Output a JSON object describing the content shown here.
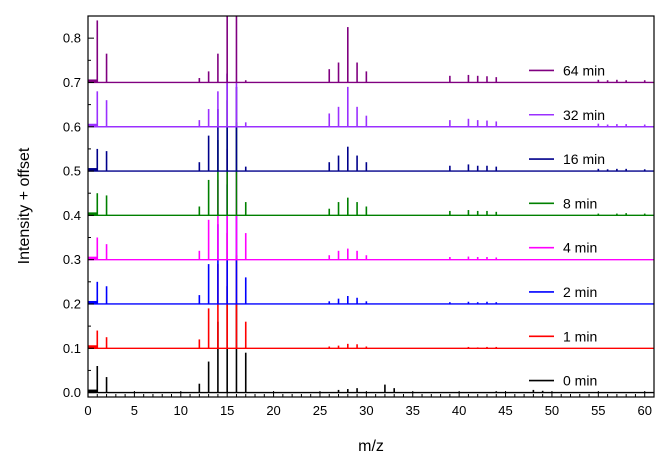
{
  "chart_data": {
    "type": "line",
    "title": "",
    "xlabel": "m/z",
    "ylabel": "Intensity + offset",
    "xlim": [
      0,
      61
    ],
    "ylim": [
      -0.01,
      0.85
    ],
    "x_major_ticks": [
      0,
      5,
      10,
      15,
      20,
      25,
      30,
      35,
      40,
      45,
      50,
      55,
      60
    ],
    "y_major_ticks": [
      0.0,
      0.1,
      0.2,
      0.3,
      0.4,
      0.5,
      0.6,
      0.7,
      0.8
    ],
    "x_tick_labels": [
      "0",
      "5",
      "10",
      "15",
      "20",
      "25",
      "30",
      "35",
      "40",
      "45",
      "50",
      "55",
      "60"
    ],
    "y_tick_labels": [
      "0.0",
      "0.1",
      "0.2",
      "0.3",
      "0.4",
      "0.5",
      "0.6",
      "0.7",
      "0.8"
    ],
    "offset_step": 0.1,
    "grid": false,
    "legend_placement": "right",
    "series": [
      {
        "name": "0 min",
        "color": "#000000",
        "offset": 0.0,
        "peaks": [
          [
            1,
            0.06
          ],
          [
            2,
            0.035
          ],
          [
            12,
            0.02
          ],
          [
            13,
            0.07
          ],
          [
            14,
            0.16
          ],
          [
            15,
            0.24
          ],
          [
            16,
            0.2
          ],
          [
            17,
            0.09
          ],
          [
            27,
            0.006
          ],
          [
            28,
            0.008
          ],
          [
            29,
            0.01
          ],
          [
            32,
            0.018
          ],
          [
            33,
            0.01
          ],
          [
            44,
            0.003
          ],
          [
            48,
            0.006
          ],
          [
            49,
            0.004
          ]
        ]
      },
      {
        "name": "1 min",
        "color": "#ff0000",
        "offset": 0.1,
        "peaks": [
          [
            1,
            0.04
          ],
          [
            2,
            0.025
          ],
          [
            12,
            0.02
          ],
          [
            13,
            0.09
          ],
          [
            14,
            0.19
          ],
          [
            15,
            0.26
          ],
          [
            16,
            0.21
          ],
          [
            17,
            0.06
          ],
          [
            26,
            0.004
          ],
          [
            27,
            0.006
          ],
          [
            28,
            0.01
          ],
          [
            29,
            0.009
          ],
          [
            30,
            0.004
          ],
          [
            41,
            0.003
          ],
          [
            42,
            0.002
          ],
          [
            43,
            0.003
          ],
          [
            44,
            0.003
          ]
        ]
      },
      {
        "name": "2 min",
        "color": "#0000ff",
        "offset": 0.2,
        "peaks": [
          [
            1,
            0.05
          ],
          [
            2,
            0.04
          ],
          [
            12,
            0.02
          ],
          [
            13,
            0.09
          ],
          [
            14,
            0.18
          ],
          [
            15,
            0.27
          ],
          [
            16,
            0.2
          ],
          [
            17,
            0.06
          ],
          [
            26,
            0.006
          ],
          [
            27,
            0.012
          ],
          [
            28,
            0.018
          ],
          [
            29,
            0.014
          ],
          [
            30,
            0.006
          ],
          [
            39,
            0.004
          ],
          [
            41,
            0.005
          ],
          [
            42,
            0.004
          ],
          [
            43,
            0.005
          ],
          [
            44,
            0.004
          ]
        ]
      },
      {
        "name": "4 min",
        "color": "#ff00ff",
        "offset": 0.3,
        "peaks": [
          [
            1,
            0.05
          ],
          [
            2,
            0.035
          ],
          [
            12,
            0.02
          ],
          [
            13,
            0.09
          ],
          [
            14,
            0.18
          ],
          [
            15,
            0.25
          ],
          [
            16,
            0.2
          ],
          [
            17,
            0.06
          ],
          [
            26,
            0.01
          ],
          [
            27,
            0.02
          ],
          [
            28,
            0.025
          ],
          [
            29,
            0.02
          ],
          [
            30,
            0.01
          ],
          [
            39,
            0.006
          ],
          [
            41,
            0.007
          ],
          [
            42,
            0.006
          ],
          [
            43,
            0.006
          ],
          [
            44,
            0.005
          ]
        ]
      },
      {
        "name": "8 min",
        "color": "#008000",
        "offset": 0.4,
        "peaks": [
          [
            1,
            0.05
          ],
          [
            2,
            0.045
          ],
          [
            12,
            0.02
          ],
          [
            13,
            0.08
          ],
          [
            14,
            0.17
          ],
          [
            15,
            0.26
          ],
          [
            16,
            0.21
          ],
          [
            17,
            0.03
          ],
          [
            26,
            0.015
          ],
          [
            27,
            0.03
          ],
          [
            28,
            0.04
          ],
          [
            29,
            0.03
          ],
          [
            30,
            0.02
          ],
          [
            39,
            0.01
          ],
          [
            41,
            0.012
          ],
          [
            42,
            0.01
          ],
          [
            43,
            0.01
          ],
          [
            44,
            0.008
          ],
          [
            55,
            0.004
          ],
          [
            57,
            0.004
          ],
          [
            58,
            0.005
          ],
          [
            60,
            0.004
          ]
        ]
      },
      {
        "name": "16 min",
        "color": "#00008b",
        "offset": 0.5,
        "peaks": [
          [
            1,
            0.05
          ],
          [
            2,
            0.045
          ],
          [
            12,
            0.02
          ],
          [
            13,
            0.08
          ],
          [
            14,
            0.14
          ],
          [
            15,
            0.22
          ],
          [
            16,
            0.19
          ],
          [
            17,
            0.01
          ],
          [
            26,
            0.02
          ],
          [
            27,
            0.035
          ],
          [
            28,
            0.055
          ],
          [
            29,
            0.035
          ],
          [
            30,
            0.02
          ],
          [
            39,
            0.012
          ],
          [
            41,
            0.015
          ],
          [
            42,
            0.012
          ],
          [
            43,
            0.012
          ],
          [
            44,
            0.01
          ],
          [
            55,
            0.005
          ],
          [
            56,
            0.004
          ],
          [
            57,
            0.005
          ],
          [
            58,
            0.005
          ],
          [
            60,
            0.004
          ]
        ]
      },
      {
        "name": "32 min",
        "color": "#9b30ff",
        "offset": 0.6,
        "peaks": [
          [
            1,
            0.08
          ],
          [
            2,
            0.06
          ],
          [
            12,
            0.015
          ],
          [
            13,
            0.04
          ],
          [
            14,
            0.08
          ],
          [
            15,
            0.12
          ],
          [
            16,
            0.1
          ],
          [
            17,
            0.01
          ],
          [
            26,
            0.03
          ],
          [
            27,
            0.045
          ],
          [
            28,
            0.09
          ],
          [
            29,
            0.045
          ],
          [
            30,
            0.025
          ],
          [
            39,
            0.015
          ],
          [
            41,
            0.018
          ],
          [
            42,
            0.015
          ],
          [
            43,
            0.014
          ],
          [
            44,
            0.012
          ],
          [
            55,
            0.007
          ],
          [
            56,
            0.005
          ],
          [
            57,
            0.006
          ],
          [
            58,
            0.006
          ],
          [
            60,
            0.005
          ]
        ]
      },
      {
        "name": "64 min",
        "color": "#800080",
        "offset": 0.7,
        "peaks": [
          [
            1,
            0.14
          ],
          [
            2,
            0.065
          ],
          [
            12,
            0.01
          ],
          [
            13,
            0.025
          ],
          [
            14,
            0.065
          ],
          [
            15,
            0.15
          ],
          [
            16,
            0.15
          ],
          [
            17,
            0.005
          ],
          [
            26,
            0.03
          ],
          [
            27,
            0.045
          ],
          [
            28,
            0.125
          ],
          [
            29,
            0.045
          ],
          [
            30,
            0.025
          ],
          [
            39,
            0.015
          ],
          [
            41,
            0.017
          ],
          [
            42,
            0.015
          ],
          [
            43,
            0.014
          ],
          [
            44,
            0.012
          ],
          [
            55,
            0.006
          ],
          [
            56,
            0.005
          ],
          [
            57,
            0.006
          ],
          [
            58,
            0.005
          ],
          [
            60,
            0.005
          ]
        ]
      }
    ]
  }
}
